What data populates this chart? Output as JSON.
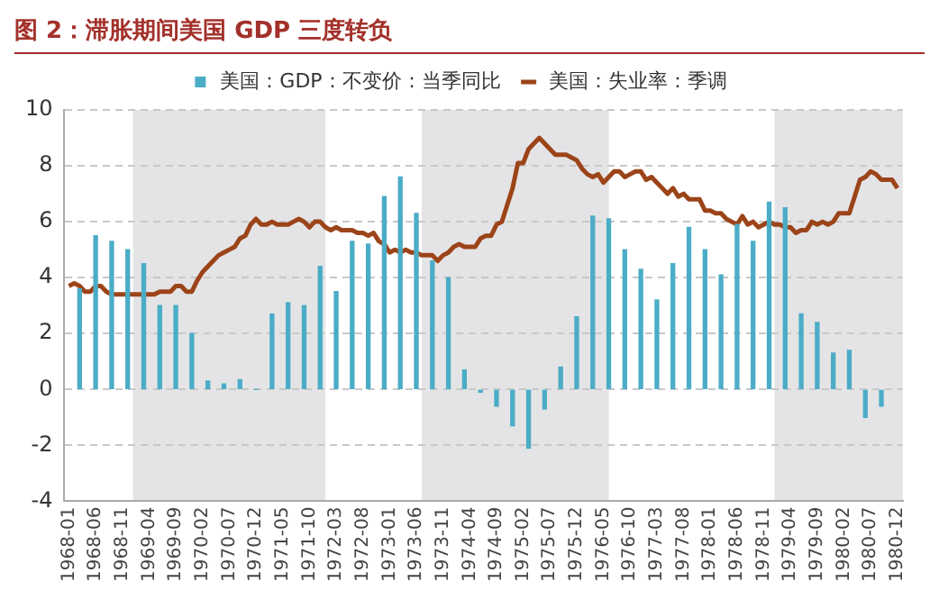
{
  "chart_data": {
    "type": "bar",
    "title": "图 2：滞胀期间美国 GDP 三度转负",
    "xlim": [
      "1967-12",
      "1981-01"
    ],
    "xticks": [
      "1968-01",
      "1968-06",
      "1968-11",
      "1969-04",
      "1969-09",
      "1970-02",
      "1970-07",
      "1970-12",
      "1971-05",
      "1971-10",
      "1972-03",
      "1972-08",
      "1973-01",
      "1973-06",
      "1973-11",
      "1974-04",
      "1974-09",
      "1975-02",
      "1975-07",
      "1975-12",
      "1976-05",
      "1976-10",
      "1977-03",
      "1977-08",
      "1978-01",
      "1978-06",
      "1978-11",
      "1979-04",
      "1979-09",
      "1980-02",
      "1980-07",
      "1980-12"
    ],
    "ylim": [
      -4,
      10
    ],
    "yticks": [
      -4,
      -2,
      0,
      2,
      4,
      6,
      8,
      10
    ],
    "grid": "y",
    "legend": "top",
    "bands": [
      {
        "axis": "x",
        "from": "1969-01",
        "to": "1972-01",
        "color": "#e4e4e6"
      },
      {
        "axis": "x",
        "from": "1973-07",
        "to": "1976-06",
        "color": "#e4e4e6"
      },
      {
        "axis": "x",
        "from": "1979-01",
        "to": "1981-01",
        "color": "#e4e4e6"
      }
    ],
    "series": [
      {
        "name": "美国：GDP：不变价：当季同比",
        "color": "#4bacc6",
        "x": [
          "1968-03",
          "1968-06",
          "1968-09",
          "1968-12",
          "1969-03",
          "1969-06",
          "1969-09",
          "1969-12",
          "1970-03",
          "1970-06",
          "1970-09",
          "1970-12",
          "1971-03",
          "1971-06",
          "1971-09",
          "1971-12",
          "1972-03",
          "1972-06",
          "1972-09",
          "1972-12",
          "1973-03",
          "1973-06",
          "1973-09",
          "1973-12",
          "1974-03",
          "1974-06",
          "1974-09",
          "1974-12",
          "1975-03",
          "1975-06",
          "1975-09",
          "1975-12",
          "1976-03",
          "1976-06",
          "1976-09",
          "1976-12",
          "1977-03",
          "1977-06",
          "1977-09",
          "1977-12",
          "1978-03",
          "1978-06",
          "1978-09",
          "1978-12",
          "1979-03",
          "1979-06",
          "1979-09",
          "1979-12",
          "1980-03",
          "1980-06",
          "1980-09"
        ],
        "values": [
          3.6,
          5.5,
          5.3,
          5.0,
          4.5,
          3.0,
          3.0,
          2.0,
          0.3,
          0.2,
          0.35,
          0,
          2.7,
          3.1,
          3.0,
          4.4,
          3.5,
          5.3,
          5.2,
          6.9,
          7.6,
          6.3,
          4.6,
          4.0,
          0.7,
          -0.1,
          -0.6,
          -1.3,
          -2.1,
          -0.7,
          0.8,
          2.6,
          6.2,
          6.1,
          5.0,
          4.3,
          3.2,
          4.5,
          5.8,
          5.0,
          4.1,
          5.9,
          5.3,
          6.7,
          6.5,
          2.7,
          2.4,
          1.3,
          1.4,
          -1.0,
          -0.6
        ]
      },
      {
        "name": "美国：失业率：季调",
        "type": "line",
        "color": "#9c4419",
        "line_style": "solid",
        "marker": "none",
        "x": [
          "1968-01",
          "1968-02",
          "1968-03",
          "1968-04",
          "1968-05",
          "1968-06",
          "1968-07",
          "1968-08",
          "1968-09",
          "1968-10",
          "1968-11",
          "1968-12",
          "1969-01",
          "1969-02",
          "1969-03",
          "1969-04",
          "1969-05",
          "1969-06",
          "1969-07",
          "1969-08",
          "1969-09",
          "1969-10",
          "1969-11",
          "1969-12",
          "1970-01",
          "1970-02",
          "1970-03",
          "1970-04",
          "1970-05",
          "1970-06",
          "1970-07",
          "1970-08",
          "1970-09",
          "1970-10",
          "1970-11",
          "1970-12",
          "1971-01",
          "1971-02",
          "1971-03",
          "1971-04",
          "1971-05",
          "1971-06",
          "1971-07",
          "1971-08",
          "1971-09",
          "1971-10",
          "1971-11",
          "1971-12",
          "1972-01",
          "1972-02",
          "1972-03",
          "1972-04",
          "1972-05",
          "1972-06",
          "1972-07",
          "1972-08",
          "1972-09",
          "1972-10",
          "1972-11",
          "1972-12",
          "1973-01",
          "1973-02",
          "1973-03",
          "1973-04",
          "1973-05",
          "1973-06",
          "1973-07",
          "1973-08",
          "1973-09",
          "1973-10",
          "1973-11",
          "1973-12",
          "1974-01",
          "1974-02",
          "1974-03",
          "1974-04",
          "1974-05",
          "1974-06",
          "1974-07",
          "1974-08",
          "1974-09",
          "1974-10",
          "1974-11",
          "1974-12",
          "1975-01",
          "1975-02",
          "1975-03",
          "1975-04",
          "1975-05",
          "1975-06",
          "1975-07",
          "1975-08",
          "1975-09",
          "1975-10",
          "1975-11",
          "1975-12",
          "1976-01",
          "1976-02",
          "1976-03",
          "1976-04",
          "1976-05",
          "1976-06",
          "1976-07",
          "1976-08",
          "1976-09",
          "1976-10",
          "1976-11",
          "1976-12",
          "1977-01",
          "1977-02",
          "1977-03",
          "1977-04",
          "1977-05",
          "1977-06",
          "1977-07",
          "1977-08",
          "1977-09",
          "1977-10",
          "1977-11",
          "1977-12",
          "1978-01",
          "1978-02",
          "1978-03",
          "1978-04",
          "1978-05",
          "1978-06",
          "1978-07",
          "1978-08",
          "1978-09",
          "1978-10",
          "1978-11",
          "1978-12",
          "1979-01",
          "1979-02",
          "1979-03",
          "1979-04",
          "1979-05",
          "1979-06",
          "1979-07",
          "1979-08",
          "1979-09",
          "1979-10",
          "1979-11",
          "1979-12",
          "1980-01",
          "1980-02",
          "1980-03",
          "1980-04",
          "1980-05",
          "1980-06",
          "1980-07",
          "1980-08",
          "1980-09",
          "1980-10",
          "1980-11",
          "1980-12"
        ],
        "values": [
          3.7,
          3.8,
          3.7,
          3.5,
          3.5,
          3.7,
          3.7,
          3.5,
          3.4,
          3.4,
          3.4,
          3.4,
          3.4,
          3.4,
          3.4,
          3.4,
          3.4,
          3.5,
          3.5,
          3.5,
          3.7,
          3.7,
          3.5,
          3.5,
          3.9,
          4.2,
          4.4,
          4.6,
          4.8,
          4.9,
          5.0,
          5.1,
          5.4,
          5.5,
          5.9,
          6.1,
          5.9,
          5.9,
          6.0,
          5.9,
          5.9,
          5.9,
          6.0,
          6.1,
          6.0,
          5.8,
          6.0,
          6.0,
          5.8,
          5.7,
          5.8,
          5.7,
          5.7,
          5.7,
          5.6,
          5.6,
          5.5,
          5.6,
          5.3,
          5.2,
          4.9,
          5.0,
          4.9,
          5.0,
          4.9,
          4.9,
          4.8,
          4.8,
          4.8,
          4.6,
          4.8,
          4.9,
          5.1,
          5.2,
          5.1,
          5.1,
          5.1,
          5.4,
          5.5,
          5.5,
          5.9,
          6.0,
          6.6,
          7.2,
          8.1,
          8.1,
          8.6,
          8.8,
          9.0,
          8.8,
          8.6,
          8.4,
          8.4,
          8.4,
          8.3,
          8.2,
          7.9,
          7.7,
          7.6,
          7.7,
          7.4,
          7.6,
          7.8,
          7.8,
          7.6,
          7.7,
          7.8,
          7.8,
          7.5,
          7.6,
          7.4,
          7.2,
          7.0,
          7.2,
          6.9,
          7.0,
          6.8,
          6.8,
          6.8,
          6.4,
          6.4,
          6.3,
          6.3,
          6.1,
          6.0,
          5.9,
          6.2,
          5.9,
          6.0,
          5.8,
          5.9,
          6.0,
          5.9,
          5.9,
          5.8,
          5.8,
          5.6,
          5.7,
          5.7,
          6.0,
          5.9,
          6.0,
          5.9,
          6.0,
          6.3,
          6.3,
          6.3,
          6.9,
          7.5,
          7.6,
          7.8,
          7.7,
          7.5,
          7.5,
          7.5,
          7.2
        ]
      }
    ]
  }
}
